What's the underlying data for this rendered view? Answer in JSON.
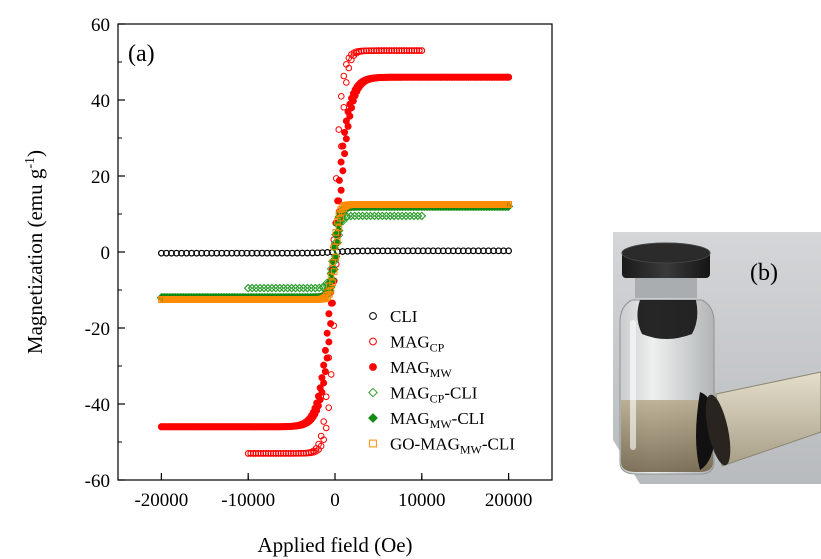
{
  "panel_a_label": "(a)",
  "panel_b_label": "(b)",
  "photo": {
    "subject": "glass vial with black cap containing dark magnetic particles attracted to a magnet"
  },
  "chart_data": {
    "type": "scatter",
    "title": "",
    "xlabel": "Applied field (Oe)",
    "ylabel": "Magnetization (emu g",
    "ylabel_sup": "-1",
    "ylabel_close": ")",
    "xlim": [
      -25000,
      25000
    ],
    "ylim": [
      -60,
      60
    ],
    "xticks": [
      -20000,
      -10000,
      0,
      10000,
      20000
    ],
    "xtick_labels": [
      "-20000",
      "-10000",
      "0",
      "10000",
      "20000"
    ],
    "yticks": [
      -60,
      -40,
      -20,
      0,
      20,
      40,
      60
    ],
    "ytick_labels": [
      "-60",
      "-40",
      "-20",
      "0",
      "20",
      "40",
      "60"
    ],
    "grid": false,
    "legend_position": "bottom-right",
    "series": [
      {
        "key": "cli",
        "name": "CLI",
        "name_sub": "",
        "name_suffix": "",
        "color": "#000000",
        "marker": "open-circle",
        "model": {
          "ms": 0.3,
          "hc": 0,
          "h0": 2000,
          "xmin": -20000,
          "xmax": 20000,
          "n": 70
        }
      },
      {
        "key": "mag_cp",
        "name": "MAG",
        "name_sub": "CP",
        "name_suffix": "",
        "color": "#ff0000",
        "marker": "open-circle",
        "model": {
          "ms": 53,
          "hc": 200,
          "h0": 900,
          "xmin": -10000,
          "xmax": 10000,
          "n": 70
        }
      },
      {
        "key": "mag_mw",
        "name": "MAG",
        "name_sub": "MW",
        "name_suffix": "",
        "color": "#ff0000",
        "marker": "filled-circle",
        "model": {
          "ms": 46,
          "hc": 150,
          "h0": 1500,
          "xmin": -20000,
          "xmax": 20000,
          "n": 200
        }
      },
      {
        "key": "mag_cp_cli",
        "name": "MAG",
        "name_sub": "CP",
        "name_suffix": "-CLI",
        "color": "#2e9e2e",
        "marker": "open-diamond",
        "model": {
          "ms": 9.5,
          "hc": 150,
          "h0": 600,
          "xmin": -10000,
          "xmax": 10000,
          "n": 45
        }
      },
      {
        "key": "mag_mw_cli",
        "name": "MAG",
        "name_sub": "MW",
        "name_suffix": "-CLI",
        "color": "#138a13",
        "marker": "filled-diamond",
        "model": {
          "ms": 12,
          "hc": 150,
          "h0": 600,
          "xmin": -20000,
          "xmax": 20000,
          "n": 220
        }
      },
      {
        "key": "go_mag_mw_cli",
        "name": "GO-MAG",
        "name_sub": "MW",
        "name_suffix": "-CLI",
        "color": "#ff8c00",
        "marker": "open-square",
        "model": {
          "ms": 12.5,
          "hc": 150,
          "h0": 550,
          "xmin": -20000,
          "xmax": 20000,
          "n": 220
        }
      }
    ]
  }
}
